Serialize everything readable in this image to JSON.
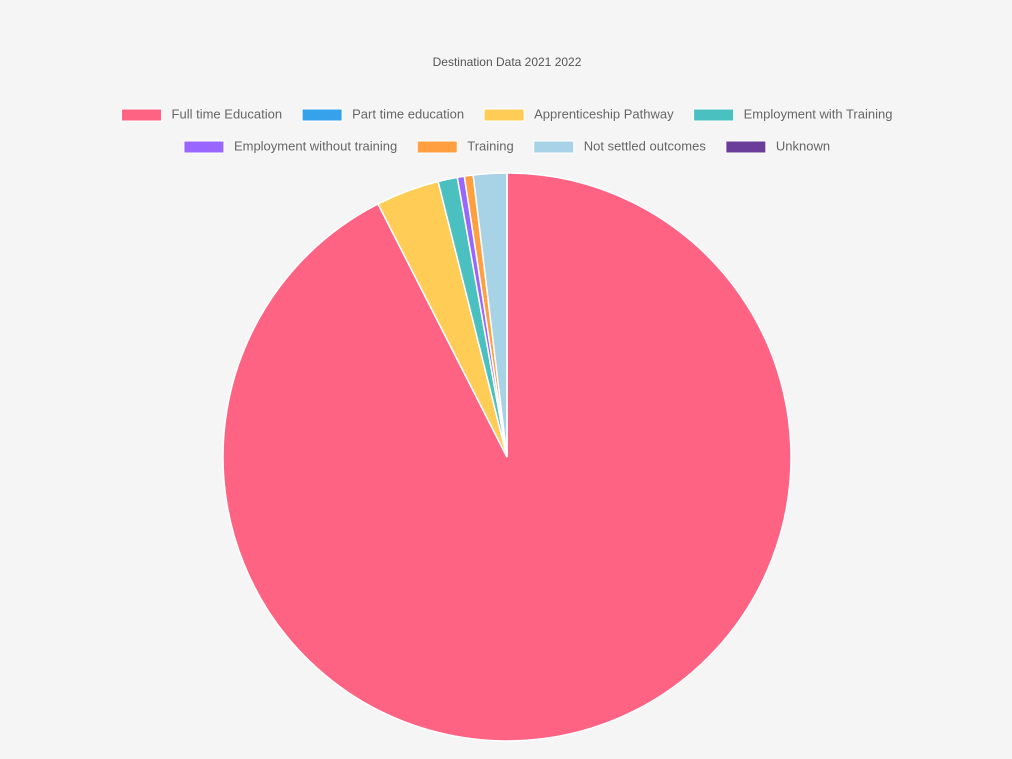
{
  "chart_data": {
    "type": "pie",
    "title": "Destination Data 2021 2022",
    "categories": [
      "Full time Education",
      "Part time education",
      "Apprenticeship Pathway",
      "Employment with Training",
      "Employment without training",
      "Training",
      "Not settled outcomes",
      "Unknown"
    ],
    "values": [
      92.5,
      0,
      3.6,
      1.1,
      0.4,
      0.5,
      1.9,
      0
    ],
    "colors": [
      "#ff6384",
      "#36a2eb",
      "#ffcd56",
      "#4bc0c0",
      "#9966ff",
      "#ff9f40",
      "#a8d3e6",
      "#6a3d9a"
    ],
    "legend": "top"
  }
}
